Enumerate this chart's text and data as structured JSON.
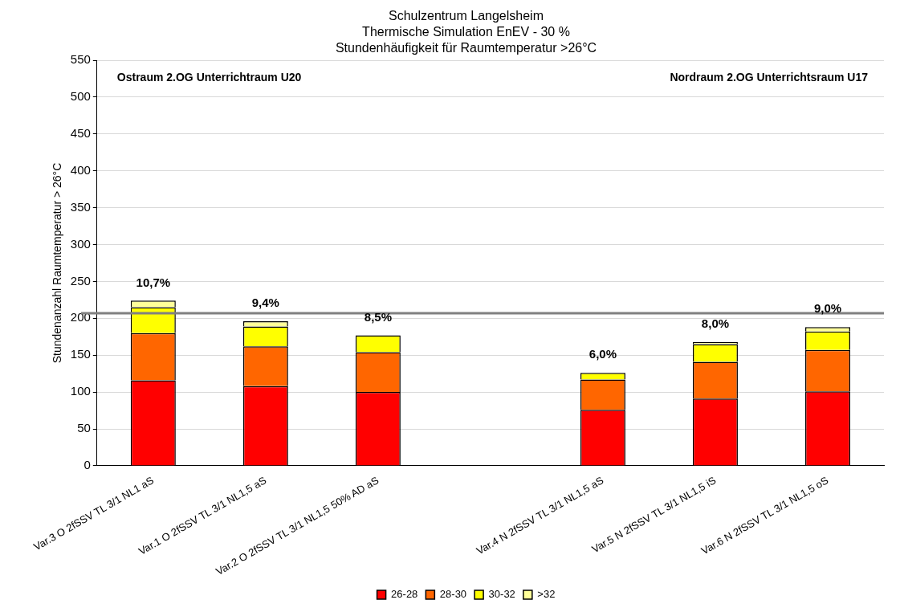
{
  "chart_data": {
    "type": "bar",
    "stacked": true,
    "title": "Schulzentrum Langelsheim",
    "subtitle": "Thermische Simulation EnEV - 30 %\nStundenhäufigkeit für Raumtemperatur >26°C",
    "ylabel": "Stundenanzahl Raumtemperatur > 26°C",
    "categories": [
      "Var.3 O 2fSSV TL 3/1 NL1 aS",
      "Var.1 O 2fSSV TL 3/1 NL1,5 aS",
      "Var.2 O 2fSSV TL 3/1 NL1,5 50% AD aS",
      null,
      "Var.4 N 2fSSV TL 3/1 NL1,5 aS",
      "Var.5 N 2fSSV TL 3/1 NL1,5 iS",
      "Var.6 N 2fSSV TL 3/1 NL1,5 oS"
    ],
    "series": [
      {
        "name": "26-28",
        "color": "#ff0000",
        "values": [
          116,
          108,
          100,
          null,
          76,
          91,
          101
        ]
      },
      {
        "name": "28-30",
        "color": "#ff6600",
        "values": [
          64,
          54,
          54,
          null,
          41,
          50,
          56
        ]
      },
      {
        "name": "30-32",
        "color": "#ffff00",
        "values": [
          35,
          27,
          23,
          null,
          9,
          24,
          25
        ]
      },
      {
        "name": ">32",
        "color": "#ffff99",
        "values": [
          9,
          7,
          0,
          null,
          0,
          3,
          6
        ]
      }
    ],
    "ylim": [
      0,
      550
    ],
    "yticks": [
      0,
      50,
      100,
      150,
      200,
      250,
      300,
      350,
      400,
      450,
      500,
      550
    ],
    "grid": "y",
    "legend": "bottom",
    "ref_lines": [
      {
        "axis": "y",
        "value": 207,
        "color": "#808080"
      }
    ],
    "annotations": [
      "Ostraum 2.OG Unterrichtraum U20",
      "Nordraum 2.OG Unterrichtsraum U17",
      {
        "text": "10,7%",
        "x": "Var.3 O 2fSSV TL 3/1 NL1 aS",
        "y": 223
      },
      {
        "text": "9,4%",
        "x": "Var.1 O 2fSSV TL 3/1 NL1,5 aS",
        "y": 196
      },
      {
        "text": "8,5%",
        "x": "Var.2 O 2fSSV TL 3/1 NL1,5 50% AD aS",
        "y": 177
      },
      {
        "text": "6,0%",
        "x": "Var.4 N 2fSSV TL 3/1 NL1,5 aS",
        "y": 126
      },
      {
        "text": "8,0%",
        "x": "Var.5 N 2fSSV TL 3/1 NL1,5 iS",
        "y": 168
      },
      {
        "text": "9,0%",
        "x": "Var.6 N 2fSSV TL 3/1 NL1,5 oS",
        "y": 188
      }
    ]
  }
}
